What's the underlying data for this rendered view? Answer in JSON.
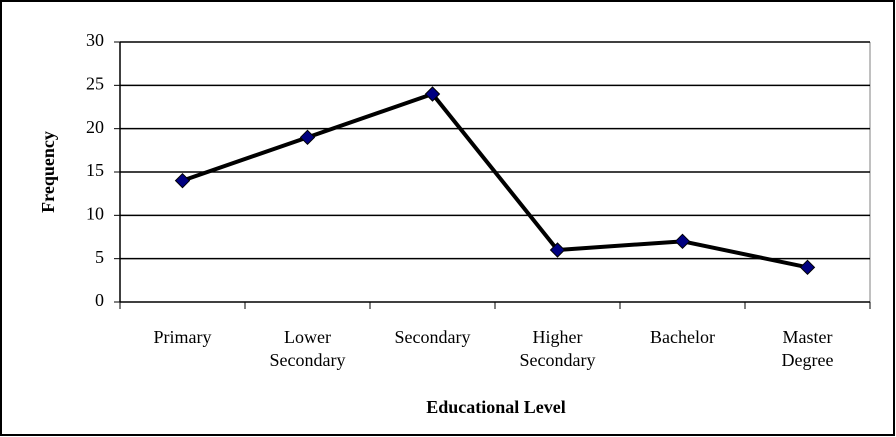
{
  "chart_data": {
    "type": "line",
    "categories": [
      "Primary",
      "Lower Secondary",
      "Secondary",
      "Higher Secondary",
      "Bachelor",
      "Master Degree"
    ],
    "values": [
      14,
      19,
      24,
      6,
      7,
      4
    ],
    "color": "#000000",
    "marker_color": "#000080",
    "ylim": [
      0,
      30
    ],
    "yticks": [
      0,
      5,
      10,
      15,
      20,
      25,
      30
    ],
    "grid": true,
    "x_label": "Educational Level",
    "y_label": "Frequency"
  }
}
